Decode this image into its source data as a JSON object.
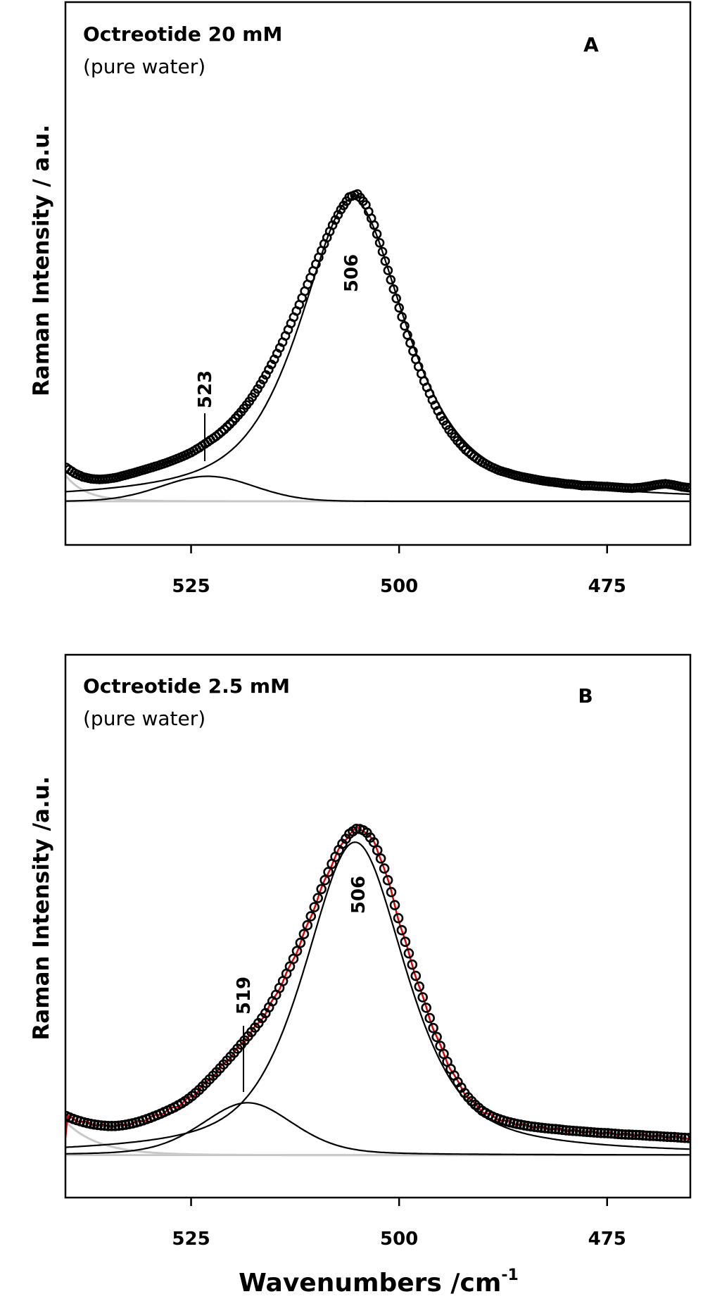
{
  "figure": {
    "xlabel": "Wavenumbers /cm",
    "xlabel_sup": "-1"
  },
  "colors": {
    "observed": "#000000",
    "fit": "#000000",
    "background": "#c8c8c8",
    "raw": "#e00000"
  },
  "chart_data": [
    {
      "type": "scatter",
      "panel_letter": "A",
      "title": "Octreotide 20 mM",
      "subtitle": "(pure water)",
      "ylabel": "Raman Intensity / a.u.",
      "xlim": [
        540.1,
        465.0
      ],
      "ylim": [
        -14,
        160
      ],
      "xticks": [
        525,
        500,
        475
      ],
      "xtick_labels": [
        "525",
        "500",
        "475"
      ],
      "x_reversed": true,
      "grid": false,
      "peak_labels": [
        {
          "text": "506",
          "x": 506
        },
        {
          "text": "523",
          "x": 523
        }
      ],
      "observed": {
        "x": [
          540,
          539,
          538,
          537,
          536,
          535,
          534,
          533,
          532,
          531,
          530,
          529,
          528,
          527,
          526,
          525,
          524,
          523,
          522,
          521,
          520,
          519,
          518,
          517,
          516,
          515,
          514,
          513,
          512,
          511,
          510,
          509,
          508,
          507,
          506,
          505,
          504,
          503,
          502,
          501,
          500,
          499,
          498,
          497,
          496,
          495,
          494,
          493,
          492,
          491,
          490,
          489,
          488,
          487,
          486,
          485,
          484,
          483,
          482,
          481,
          480,
          479,
          478,
          477,
          476,
          475,
          474,
          473,
          472,
          471,
          470,
          469,
          468,
          467,
          466,
          465
        ],
        "y": [
          10.8,
          9,
          7.8,
          7.2,
          7,
          7.2,
          7.6,
          8.3,
          9,
          9.8,
          10.6,
          11.4,
          12.3,
          13.3,
          14.4,
          15.6,
          17.2,
          19,
          20.8,
          23,
          25.6,
          28.6,
          32,
          36,
          40.5,
          45.5,
          51,
          57,
          63,
          69.5,
          76,
          82.5,
          88.5,
          93.5,
          97.5,
          98.5,
          95,
          88.5,
          80,
          71,
          62,
          53.3,
          45.5,
          38.5,
          32.5,
          27.2,
          22.9,
          19.4,
          16.5,
          14.3,
          12.5,
          11.1,
          9.9,
          9.1,
          8.3,
          7.7,
          7.2,
          6.7,
          6.3,
          6.0,
          5.6,
          5.4,
          5.0,
          5.0,
          4.8,
          4.7,
          4.5,
          4.3,
          4.2,
          4.4,
          4.8,
          5.3,
          5.6,
          5.2,
          4.6,
          4.3
        ]
      },
      "fit_components": [
        {
          "center": 505.6,
          "height": 97,
          "fwhm": 15,
          "lorentz_fraction": 0.7
        },
        {
          "center": 523,
          "height": 8,
          "fwhm": 13,
          "lorentz_fraction": 0.0
        }
      ],
      "background": {
        "amplitude": 8,
        "decay": 2.5,
        "from": 540
      }
    },
    {
      "type": "scatter",
      "panel_letter": "B",
      "title": "Octreotide 2.5 mM",
      "subtitle": "(pure water)",
      "ylabel": "Raman Intensity /a.u.",
      "xlim": [
        540.1,
        465.0
      ],
      "ylim": [
        -13,
        153
      ],
      "xticks": [
        525,
        500,
        475
      ],
      "xtick_labels": [
        "525",
        "500",
        "475"
      ],
      "x_reversed": true,
      "grid": false,
      "peak_labels": [
        {
          "text": "506",
          "x": 506
        },
        {
          "text": "519",
          "x": 519
        }
      ],
      "observed": {
        "x": [
          540,
          539,
          538,
          537,
          536,
          535,
          534,
          533,
          532,
          531,
          530,
          529,
          528,
          527,
          526,
          525,
          524,
          523,
          522,
          521,
          520,
          519,
          518,
          517,
          516,
          515,
          514,
          513,
          512,
          511,
          510,
          509,
          508,
          507,
          506,
          505,
          504,
          503,
          502,
          501,
          500,
          499,
          498,
          497,
          496,
          495,
          494,
          493,
          492,
          491,
          490,
          489,
          488,
          487,
          486,
          485,
          484,
          483,
          482,
          481,
          480,
          479,
          478,
          477,
          476,
          475,
          474,
          473,
          472,
          471,
          470,
          469,
          468,
          467,
          466,
          465
        ],
        "y": [
          11.9,
          10.9,
          10.1,
          9.5,
          9.1,
          8.9,
          8.9,
          9.2,
          9.7,
          10.4,
          11.3,
          12.3,
          13.4,
          14.6,
          16,
          17.8,
          20,
          22.6,
          25.2,
          28,
          30.8,
          33.8,
          36.8,
          40,
          43.6,
          48,
          53,
          58.3,
          64,
          70.4,
          77,
          83.6,
          89.5,
          94.5,
          98.2,
          100,
          99,
          95.5,
          89.5,
          81,
          71.5,
          63,
          54.8,
          47,
          39.5,
          33,
          27.3,
          22.5,
          18.5,
          15.7,
          13.5,
          12,
          11,
          10.2,
          9.6,
          9.1,
          8.7,
          8.4,
          8.1,
          7.9,
          7.6,
          7.4,
          7.2,
          7,
          6.8,
          6.7,
          6.5,
          6.3,
          6.2,
          6.1,
          5.9,
          5.8,
          5.6,
          5.5,
          5.3,
          5.2
        ]
      },
      "raw_spectrum_color": "#e00000",
      "fit_components": [
        {
          "center": 505.3,
          "height": 95.7,
          "fwhm": 14.5,
          "lorentz_fraction": 0.6
        },
        {
          "center": 518.2,
          "height": 16,
          "fwhm": 13,
          "lorentz_fraction": 0.3
        }
      ],
      "background": {
        "amplitude": 10,
        "decay": 4,
        "from": 540
      }
    }
  ]
}
